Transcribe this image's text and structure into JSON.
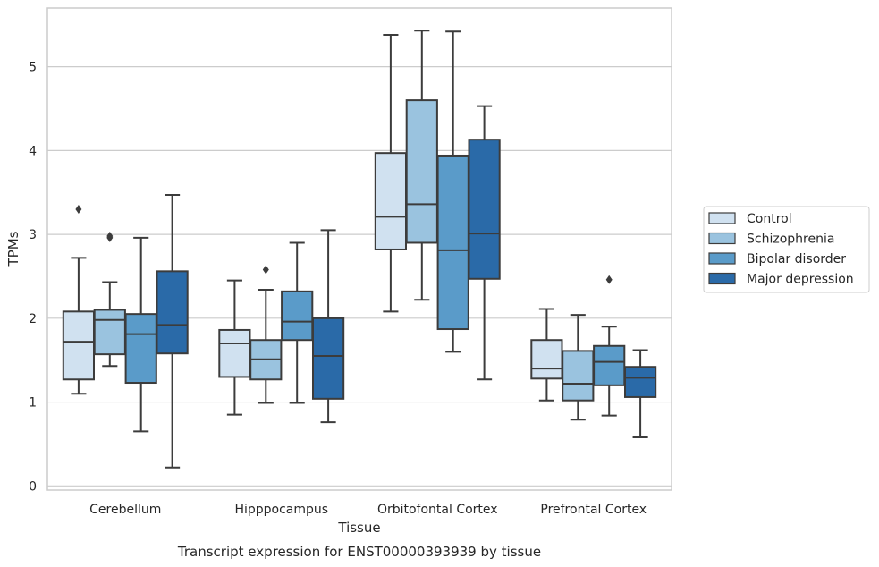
{
  "chart_data": {
    "type": "boxplot",
    "title": "",
    "caption": "Transcript expression for ENST00000393939 by tissue",
    "xlabel": "Tissue",
    "ylabel": "TPMs",
    "ylim": [
      -0.05,
      5.7
    ],
    "yticks": [
      0,
      1,
      2,
      3,
      4,
      5
    ],
    "grid": "horizontal",
    "legend_position": "right",
    "categories": [
      "Cerebellum",
      "Hipppocampus",
      "Orbitofontal Cortex",
      "Prefrontal Cortex"
    ],
    "series": [
      {
        "name": "Control",
        "color": "#d0e1f0",
        "boxes": [
          {
            "whislo": 1.1,
            "q1": 1.27,
            "med": 1.72,
            "q3": 2.08,
            "whishi": 2.72,
            "fliers": [
              3.3
            ]
          },
          {
            "whislo": 0.85,
            "q1": 1.3,
            "med": 1.7,
            "q3": 1.86,
            "whishi": 2.45,
            "fliers": []
          },
          {
            "whislo": 2.08,
            "q1": 2.82,
            "med": 3.21,
            "q3": 3.97,
            "whishi": 5.38,
            "fliers": []
          },
          {
            "whislo": 1.02,
            "q1": 1.28,
            "med": 1.4,
            "q3": 1.74,
            "whishi": 2.11,
            "fliers": []
          }
        ]
      },
      {
        "name": "Schizophrenia",
        "color": "#9ac3df",
        "boxes": [
          {
            "whislo": 1.43,
            "q1": 1.57,
            "med": 1.98,
            "q3": 2.1,
            "whishi": 2.43,
            "fliers": [
              2.96,
              2.98
            ]
          },
          {
            "whislo": 0.99,
            "q1": 1.27,
            "med": 1.51,
            "q3": 1.74,
            "whishi": 2.34,
            "fliers": [
              2.58
            ]
          },
          {
            "whislo": 2.22,
            "q1": 2.9,
            "med": 3.36,
            "q3": 4.6,
            "whishi": 5.43,
            "fliers": []
          },
          {
            "whislo": 0.79,
            "q1": 1.02,
            "med": 1.22,
            "q3": 1.61,
            "whishi": 2.04,
            "fliers": []
          }
        ]
      },
      {
        "name": "Bipolar disorder",
        "color": "#5a9bc9",
        "boxes": [
          {
            "whislo": 0.65,
            "q1": 1.23,
            "med": 1.81,
            "q3": 2.05,
            "whishi": 2.96,
            "fliers": []
          },
          {
            "whislo": 0.99,
            "q1": 1.74,
            "med": 1.96,
            "q3": 2.32,
            "whishi": 2.9,
            "fliers": []
          },
          {
            "whislo": 1.6,
            "q1": 1.87,
            "med": 2.81,
            "q3": 3.94,
            "whishi": 5.42,
            "fliers": []
          },
          {
            "whislo": 0.84,
            "q1": 1.2,
            "med": 1.48,
            "q3": 1.67,
            "whishi": 1.9,
            "fliers": [
              2.46
            ]
          }
        ]
      },
      {
        "name": "Major depression",
        "color": "#2a6aa8",
        "boxes": [
          {
            "whislo": 0.22,
            "q1": 1.58,
            "med": 1.92,
            "q3": 2.56,
            "whishi": 3.47,
            "fliers": []
          },
          {
            "whislo": 0.76,
            "q1": 1.04,
            "med": 1.55,
            "q3": 2.0,
            "whishi": 3.05,
            "fliers": []
          },
          {
            "whislo": 1.27,
            "q1": 2.47,
            "med": 3.01,
            "q3": 4.13,
            "whishi": 4.53,
            "fliers": []
          },
          {
            "whislo": 0.58,
            "q1": 1.06,
            "med": 1.29,
            "q3": 1.42,
            "whishi": 1.62,
            "fliers": []
          }
        ]
      }
    ]
  }
}
